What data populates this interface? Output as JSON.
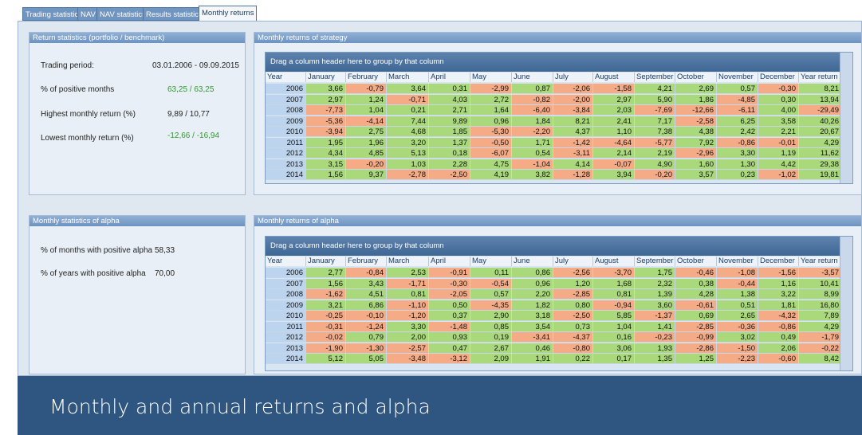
{
  "tabs": [
    "Trading statistics",
    "NAV",
    "NAV statistics",
    "Results statistics",
    "Monthly returns"
  ],
  "stat_panels": [
    {
      "title": "Return statistics (portfolio / benchmark)",
      "rows": [
        {
          "label": "Trading period:",
          "value": "03.01.2006 - 09.09.2015"
        },
        {
          "label": "% of positive months",
          "value": "63,25 / 63,25"
        },
        {
          "label": "Highest monthly return (%)",
          "value": "9,89 / 10,77"
        },
        {
          "label": "Lowest monthly return (%)",
          "value": "-12,66 / -16,94"
        }
      ]
    },
    {
      "title": "Monthly statistics of alpha",
      "rows": [
        {
          "label": "% of months with positive alpha",
          "value": "58,33"
        },
        {
          "label": "% of years with positive alpha",
          "value": "70,00"
        }
      ]
    }
  ],
  "grids": [
    {
      "title": "Monthly returns of strategy",
      "group_hint": "Drag a column header here to group by that column",
      "columns": [
        "Year",
        "January",
        "February",
        "March",
        "April",
        "May",
        "June",
        "July",
        "August",
        "September",
        "October",
        "November",
        "December",
        "Year return"
      ],
      "rows": [
        [
          "2006",
          "3,66",
          "-0,79",
          "3,64",
          "0,31",
          "-2,99",
          "0,87",
          "-2,06",
          "-1,58",
          "4,21",
          "2,69",
          "0,57",
          "-0,30",
          "8,21"
        ],
        [
          "2007",
          "2,97",
          "1,24",
          "-0,71",
          "4,03",
          "2,72",
          "-0,82",
          "-2,00",
          "2,97",
          "5,90",
          "1,86",
          "-4,85",
          "0,30",
          "13,94"
        ],
        [
          "2008",
          "-7,73",
          "1,04",
          "0,21",
          "2,71",
          "1,64",
          "-6,40",
          "-3,84",
          "2,03",
          "-7,69",
          "-12,66",
          "-6,11",
          "4,00",
          "-29,49"
        ],
        [
          "2009",
          "-5,36",
          "-4,14",
          "7,44",
          "9,89",
          "0,96",
          "1,84",
          "8,21",
          "2,41",
          "7,17",
          "-2,58",
          "6,25",
          "3,58",
          "40,26"
        ],
        [
          "2010",
          "-3,94",
          "2,75",
          "4,68",
          "1,85",
          "-5,30",
          "-2,20",
          "4,37",
          "1,10",
          "7,38",
          "4,38",
          "2,42",
          "2,21",
          "20,67"
        ],
        [
          "2011",
          "1,95",
          "1,96",
          "3,20",
          "1,37",
          "-0,50",
          "1,71",
          "-1,42",
          "-4,64",
          "-5,77",
          "7,92",
          "-0,86",
          "-0,01",
          "4,29"
        ],
        [
          "2012",
          "4,34",
          "4,85",
          "5,13",
          "0,18",
          "-6,07",
          "0,54",
          "-3,11",
          "2,14",
          "2,19",
          "-2,96",
          "3,30",
          "1,19",
          "11,62"
        ],
        [
          "2013",
          "3,15",
          "-0,20",
          "1,03",
          "2,28",
          "4,75",
          "-1,04",
          "4,14",
          "-0,07",
          "4,90",
          "1,60",
          "1,30",
          "4,42",
          "29,38"
        ],
        [
          "2014",
          "1,56",
          "9,37",
          "-2,78",
          "-2,50",
          "4,19",
          "3,82",
          "-1,28",
          "3,94",
          "-0,20",
          "3,57",
          "0,23",
          "-1,02",
          "19,81"
        ]
      ]
    },
    {
      "title": "Monthly returns of alpha",
      "group_hint": "Drag a column header here to group by that column",
      "columns": [
        "Year",
        "January",
        "February",
        "March",
        "April",
        "May",
        "June",
        "July",
        "August",
        "September",
        "October",
        "November",
        "December",
        "Year return"
      ],
      "rows": [
        [
          "2006",
          "2,77",
          "-0,84",
          "2,53",
          "-0,91",
          "0,11",
          "0,86",
          "-2,56",
          "-3,70",
          "1,75",
          "-0,46",
          "-1,08",
          "-1,56",
          "-3,57"
        ],
        [
          "2007",
          "1,56",
          "3,43",
          "-1,71",
          "-0,30",
          "-0,54",
          "0,96",
          "1,20",
          "1,68",
          "2,32",
          "0,38",
          "-0,44",
          "1,16",
          "10,41"
        ],
        [
          "2008",
          "-1,62",
          "4,51",
          "0,81",
          "-2,05",
          "0,57",
          "2,20",
          "-2,85",
          "0,81",
          "1,39",
          "4,28",
          "1,38",
          "3,22",
          "8,99"
        ],
        [
          "2009",
          "3,21",
          "6,86",
          "-1,10",
          "0,50",
          "-4,35",
          "1,82",
          "0,80",
          "-0,94",
          "3,60",
          "-0,61",
          "0,51",
          "1,81",
          "16,80"
        ],
        [
          "2010",
          "-0,25",
          "-0,10",
          "-1,20",
          "0,37",
          "2,90",
          "3,18",
          "-2,50",
          "5,85",
          "-1,37",
          "0,69",
          "2,65",
          "-4,32",
          "7,89"
        ],
        [
          "2011",
          "-0,31",
          "-1,24",
          "3,30",
          "-1,48",
          "0,85",
          "3,54",
          "0,73",
          "1,04",
          "1,41",
          "-2,85",
          "-0,36",
          "-0,86",
          "4,29"
        ],
        [
          "2012",
          "-0,02",
          "0,79",
          "2,00",
          "0,93",
          "0,19",
          "-3,41",
          "-4,37",
          "0,16",
          "-0,23",
          "-0,99",
          "3,02",
          "0,49",
          "-1,79"
        ],
        [
          "2013",
          "-1,90",
          "-1,30",
          "-2,57",
          "0,47",
          "2,67",
          "0,46",
          "-0,80",
          "3,06",
          "1,93",
          "-2,86",
          "-1,50",
          "2,06",
          "-0,22"
        ],
        [
          "2014",
          "5,12",
          "5,05",
          "-3,48",
          "-3,12",
          "2,09",
          "1,91",
          "0,22",
          "0,17",
          "1,35",
          "1,25",
          "-2,23",
          "-0,60",
          "8,42"
        ]
      ]
    }
  ],
  "caption": "Monthly and annual returns and alpha"
}
